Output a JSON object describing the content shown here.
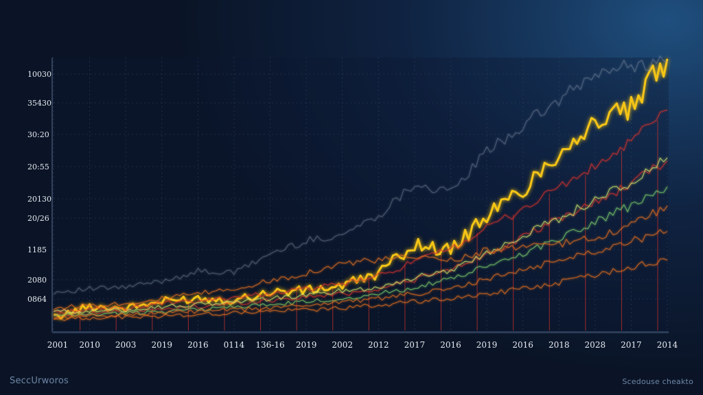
{
  "captions": {
    "bottom_left": "SeccUrworos",
    "bottom_right": "Scedouse cheakto"
  },
  "colors": {
    "highlight": "#f5c518",
    "red": "#d8332c",
    "orange": "#e8711f",
    "green": "#7ccf6a",
    "lime": "#cfe86a",
    "gray": "#8a97ad",
    "grid": "#3b4d6b",
    "axis_text": "#e8ecf2"
  },
  "chart_data": {
    "type": "line",
    "title": "",
    "xlabel": "",
    "ylabel": "",
    "grid": true,
    "legend": "none",
    "categories": [
      "2001",
      "2010",
      "2003",
      "2019",
      "2016",
      "0114",
      "136-16",
      "2019",
      "2002",
      "2012",
      "2017",
      "2016",
      "2019",
      "2016",
      "2018",
      "2028",
      "2017",
      "2014"
    ],
    "y_tick_labels": [
      "0864",
      "2080",
      "1185",
      "20/26",
      "20130",
      "20:55",
      "30:20",
      "35430",
      "10030"
    ],
    "ylim": [
      0,
      8
    ],
    "series": [
      {
        "color": "highlight",
        "emphasis": true,
        "values": [
          0.1,
          0.45,
          0.4,
          0.6,
          0.72,
          0.65,
          0.9,
          0.95,
          1.1,
          1.5,
          2.4,
          2.2,
          3.3,
          4.1,
          5.3,
          6.2,
          6.6,
          8.2
        ]
      },
      {
        "color": "gray",
        "values": [
          0.9,
          1.0,
          1.05,
          1.25,
          1.55,
          1.5,
          2.1,
          2.5,
          2.7,
          3.3,
          4.3,
          4.0,
          5.3,
          6.1,
          6.9,
          7.7,
          8.0,
          8.1
        ]
      },
      {
        "color": "red",
        "values": [
          0.3,
          0.35,
          0.4,
          0.55,
          0.6,
          0.75,
          0.85,
          1.0,
          1.15,
          1.4,
          1.85,
          2.25,
          2.9,
          3.5,
          4.2,
          4.8,
          5.6,
          6.6
        ]
      },
      {
        "color": "red",
        "values": [
          0.2,
          0.25,
          0.3,
          0.35,
          0.45,
          0.55,
          0.65,
          0.75,
          0.85,
          1.0,
          1.3,
          1.6,
          2.1,
          2.6,
          3.2,
          3.7,
          4.3,
          5.0
        ]
      },
      {
        "color": "lime",
        "values": [
          0.3,
          0.3,
          0.35,
          0.45,
          0.5,
          0.6,
          0.7,
          0.8,
          0.95,
          1.05,
          1.35,
          1.6,
          2.1,
          2.7,
          3.2,
          3.8,
          4.3,
          5.1
        ]
      },
      {
        "color": "green",
        "values": [
          0.15,
          0.2,
          0.25,
          0.3,
          0.35,
          0.45,
          0.5,
          0.6,
          0.7,
          0.85,
          1.05,
          1.3,
          1.7,
          2.1,
          2.6,
          3.1,
          3.6,
          4.2
        ]
      },
      {
        "color": "orange",
        "values": [
          0.4,
          0.5,
          0.55,
          0.7,
          0.85,
          1.0,
          1.25,
          1.5,
          1.8,
          1.9,
          2.0,
          1.9,
          2.2,
          2.3,
          2.4,
          2.6,
          3.0,
          3.6
        ]
      },
      {
        "color": "orange",
        "values": [
          0.1,
          0.15,
          0.2,
          0.25,
          0.3,
          0.35,
          0.4,
          0.5,
          0.6,
          0.7,
          0.85,
          1.0,
          1.3,
          1.6,
          1.9,
          2.2,
          2.5,
          2.8
        ]
      },
      {
        "color": "orange",
        "values": [
          0.05,
          0.1,
          0.12,
          0.15,
          0.2,
          0.25,
          0.3,
          0.35,
          0.4,
          0.5,
          0.6,
          0.7,
          0.85,
          1.0,
          1.2,
          1.45,
          1.7,
          1.9
        ]
      }
    ]
  }
}
